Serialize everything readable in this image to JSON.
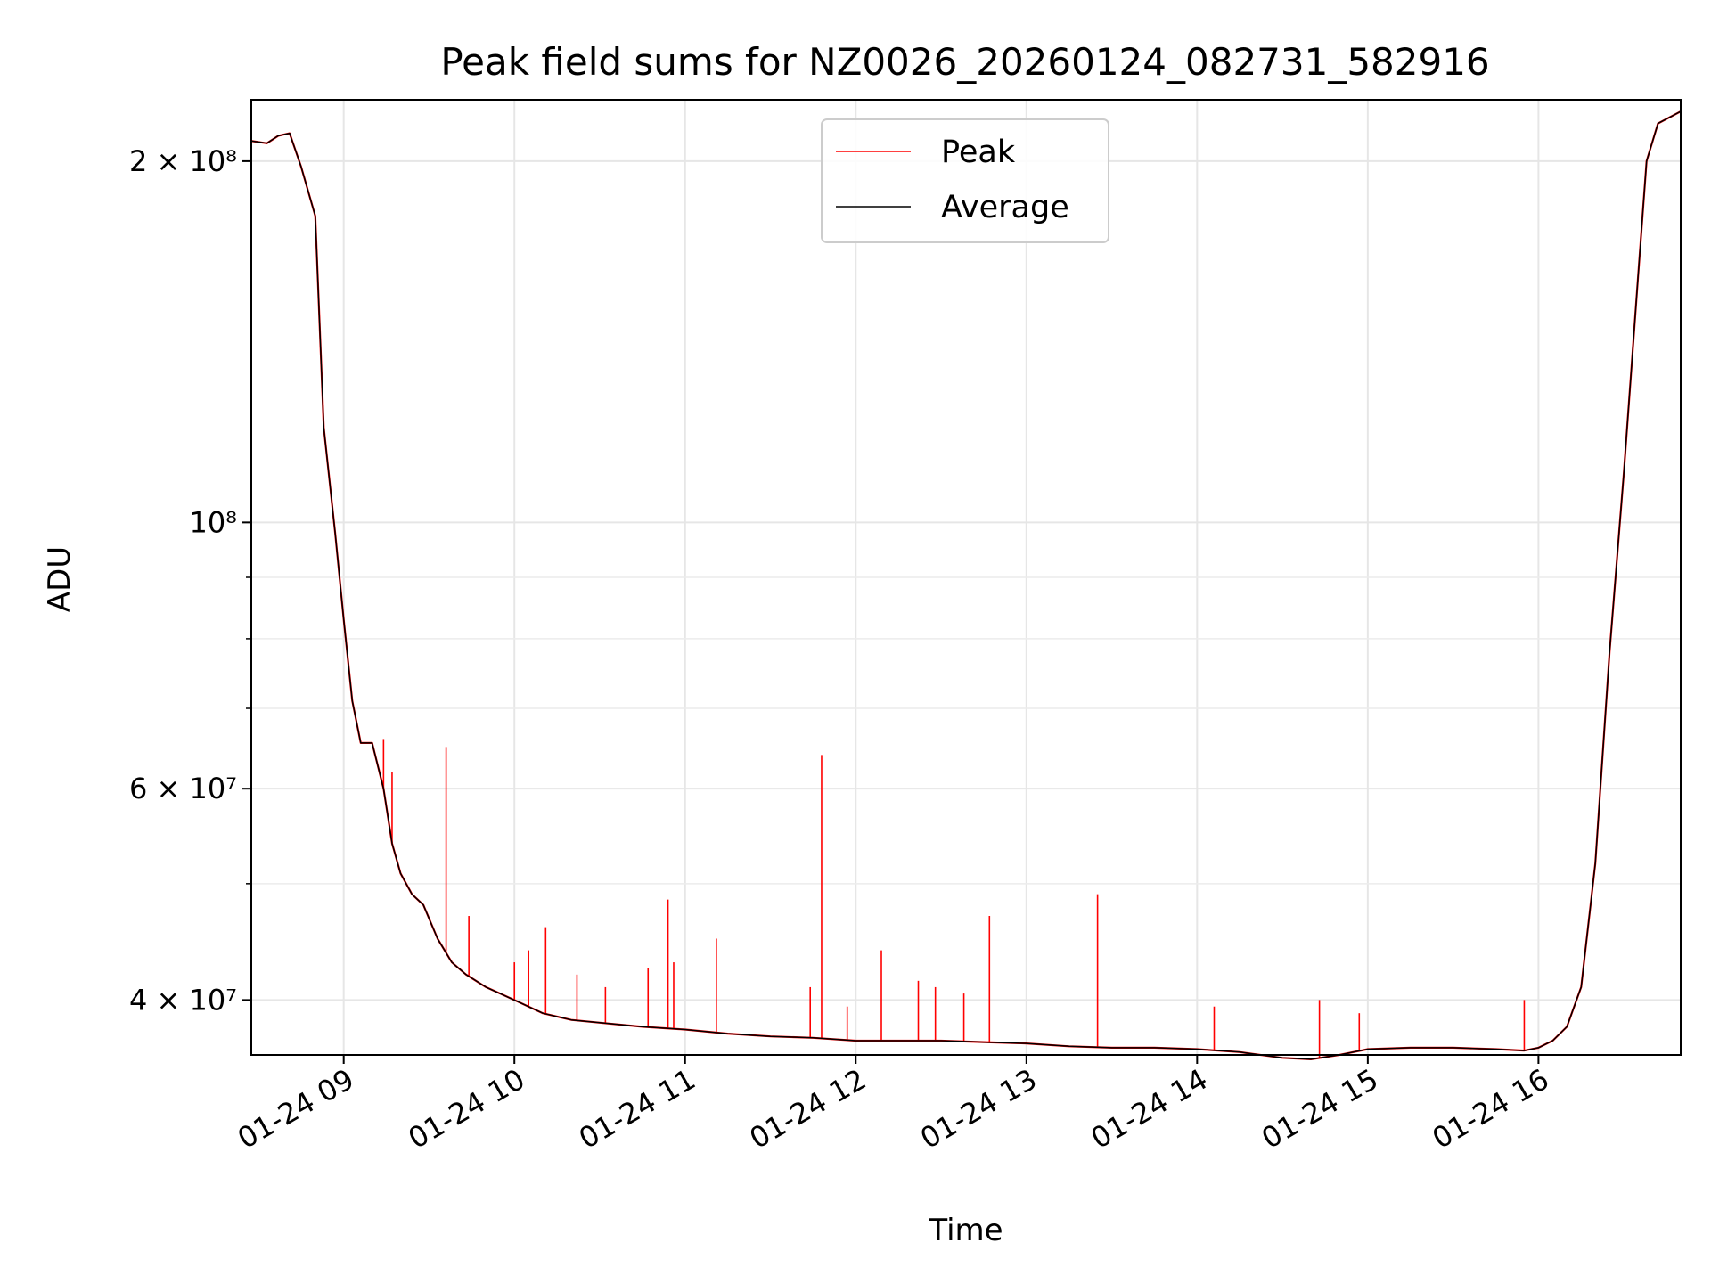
{
  "chart_data": {
    "type": "line",
    "title": "Peak field sums for NZ0026_20260124_082731_582916",
    "xlabel": "Time",
    "ylabel": "ADU",
    "yscale": "log",
    "ylim": [
      36000000,
      225000000
    ],
    "xlim": [
      "2026-01-24T08:27:31",
      "2026-01-24T16:50:00"
    ],
    "grid": true,
    "legend": "upper center",
    "x_ticks": [
      {
        "t": "2026-01-24T09:00",
        "label": "01-24 09"
      },
      {
        "t": "2026-01-24T10:00",
        "label": "01-24 10"
      },
      {
        "t": "2026-01-24T11:00",
        "label": "01-24 11"
      },
      {
        "t": "2026-01-24T12:00",
        "label": "01-24 12"
      },
      {
        "t": "2026-01-24T13:00",
        "label": "01-24 13"
      },
      {
        "t": "2026-01-24T14:00",
        "label": "01-24 14"
      },
      {
        "t": "2026-01-24T15:00",
        "label": "01-24 15"
      },
      {
        "t": "2026-01-24T16:00",
        "label": "01-24 16"
      }
    ],
    "y_major_ticks": [
      {
        "v": 40000000,
        "label": "4 × 10⁷"
      },
      {
        "v": 60000000,
        "label": "6 × 10⁷"
      },
      {
        "v": 100000000,
        "label": "10⁸"
      },
      {
        "v": 200000000,
        "label": "2 × 10⁸"
      }
    ],
    "y_minor_ticks": [
      50000000,
      70000000,
      80000000,
      90000000
    ],
    "series": [
      {
        "name": "Average",
        "color": "#000000",
        "x": [
          "2026-01-24T08:27",
          "2026-01-24T08:33",
          "2026-01-24T08:37",
          "2026-01-24T08:41",
          "2026-01-24T08:45",
          "2026-01-24T08:50",
          "2026-01-24T08:53",
          "2026-01-24T08:57",
          "2026-01-24T09:00",
          "2026-01-24T09:03",
          "2026-01-24T09:06",
          "2026-01-24T09:10",
          "2026-01-24T09:14",
          "2026-01-24T09:17",
          "2026-01-24T09:20",
          "2026-01-24T09:24",
          "2026-01-24T09:28",
          "2026-01-24T09:33",
          "2026-01-24T09:38",
          "2026-01-24T09:43",
          "2026-01-24T09:50",
          "2026-01-24T10:00",
          "2026-01-24T10:10",
          "2026-01-24T10:20",
          "2026-01-24T10:30",
          "2026-01-24T10:45",
          "2026-01-24T11:00",
          "2026-01-24T11:15",
          "2026-01-24T11:30",
          "2026-01-24T11:45",
          "2026-01-24T12:00",
          "2026-01-24T12:15",
          "2026-01-24T12:30",
          "2026-01-24T12:45",
          "2026-01-24T13:00",
          "2026-01-24T13:15",
          "2026-01-24T13:30",
          "2026-01-24T13:45",
          "2026-01-24T14:00",
          "2026-01-24T14:15",
          "2026-01-24T14:30",
          "2026-01-24T14:40",
          "2026-01-24T14:50",
          "2026-01-24T15:00",
          "2026-01-24T15:15",
          "2026-01-24T15:30",
          "2026-01-24T15:45",
          "2026-01-24T15:55",
          "2026-01-24T16:00",
          "2026-01-24T16:05",
          "2026-01-24T16:10",
          "2026-01-24T16:15",
          "2026-01-24T16:20",
          "2026-01-24T16:25",
          "2026-01-24T16:30",
          "2026-01-24T16:35",
          "2026-01-24T16:38",
          "2026-01-24T16:42",
          "2026-01-24T16:50"
        ],
        "y": [
          208000000,
          207000000,
          210000000,
          211000000,
          198000000,
          180000000,
          120000000,
          98000000,
          83000000,
          71000000,
          65500000,
          65500000,
          60000000,
          54000000,
          51000000,
          49000000,
          48000000,
          45000000,
          43000000,
          42000000,
          41000000,
          40000000,
          39000000,
          38500000,
          38300000,
          38000000,
          37800000,
          37500000,
          37300000,
          37200000,
          37000000,
          37000000,
          37000000,
          36900000,
          36800000,
          36600000,
          36500000,
          36500000,
          36400000,
          36200000,
          35800000,
          35700000,
          36000000,
          36400000,
          36500000,
          36500000,
          36400000,
          36300000,
          36500000,
          37000000,
          38000000,
          41000000,
          52000000,
          78000000,
          110000000,
          160000000,
          200000000,
          215000000,
          220000000
        ]
      },
      {
        "name": "Peak",
        "color": "#ff0000",
        "spikes": [
          {
            "t": "2026-01-24T09:14",
            "y": 66000000
          },
          {
            "t": "2026-01-24T09:17",
            "y": 62000000
          },
          {
            "t": "2026-01-24T09:36",
            "y": 65000000
          },
          {
            "t": "2026-01-24T09:44",
            "y": 47000000
          },
          {
            "t": "2026-01-24T10:00",
            "y": 43000000
          },
          {
            "t": "2026-01-24T10:05",
            "y": 44000000
          },
          {
            "t": "2026-01-24T10:11",
            "y": 46000000
          },
          {
            "t": "2026-01-24T10:22",
            "y": 42000000
          },
          {
            "t": "2026-01-24T10:32",
            "y": 41000000
          },
          {
            "t": "2026-01-24T10:47",
            "y": 42500000
          },
          {
            "t": "2026-01-24T10:54",
            "y": 48500000
          },
          {
            "t": "2026-01-24T10:56",
            "y": 43000000
          },
          {
            "t": "2026-01-24T11:11",
            "y": 45000000
          },
          {
            "t": "2026-01-24T11:44",
            "y": 41000000
          },
          {
            "t": "2026-01-24T11:48",
            "y": 64000000
          },
          {
            "t": "2026-01-24T11:57",
            "y": 39500000
          },
          {
            "t": "2026-01-24T12:09",
            "y": 44000000
          },
          {
            "t": "2026-01-24T12:22",
            "y": 41500000
          },
          {
            "t": "2026-01-24T12:28",
            "y": 41000000
          },
          {
            "t": "2026-01-24T12:38",
            "y": 40500000
          },
          {
            "t": "2026-01-24T12:47",
            "y": 47000000
          },
          {
            "t": "2026-01-24T13:25",
            "y": 49000000
          },
          {
            "t": "2026-01-24T14:06",
            "y": 39500000
          },
          {
            "t": "2026-01-24T14:43",
            "y": 40000000
          },
          {
            "t": "2026-01-24T14:57",
            "y": 39000000
          },
          {
            "t": "2026-01-24T15:55",
            "y": 40000000
          }
        ]
      }
    ]
  }
}
